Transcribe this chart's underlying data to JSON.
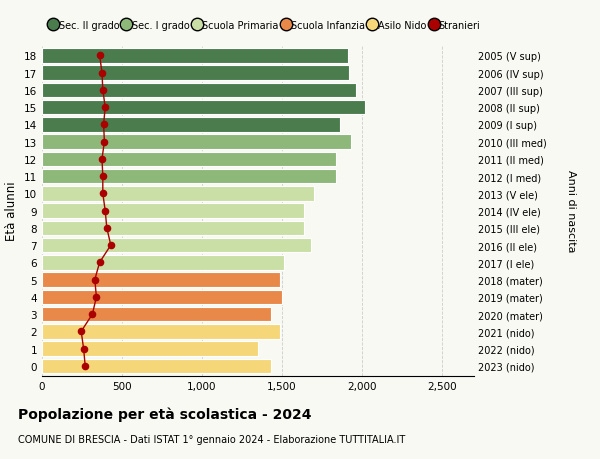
{
  "ages": [
    0,
    1,
    2,
    3,
    4,
    5,
    6,
    7,
    8,
    9,
    10,
    11,
    12,
    13,
    14,
    15,
    16,
    17,
    18
  ],
  "right_labels": [
    "2023 (nido)",
    "2022 (nido)",
    "2021 (nido)",
    "2020 (mater)",
    "2019 (mater)",
    "2018 (mater)",
    "2017 (I ele)",
    "2016 (II ele)",
    "2015 (III ele)",
    "2014 (IV ele)",
    "2013 (V ele)",
    "2012 (I med)",
    "2011 (II med)",
    "2010 (III med)",
    "2009 (I sup)",
    "2008 (II sup)",
    "2007 (III sup)",
    "2006 (IV sup)",
    "2005 (V sup)"
  ],
  "bar_values": [
    1430,
    1350,
    1490,
    1430,
    1500,
    1490,
    1510,
    1680,
    1640,
    1640,
    1700,
    1840,
    1840,
    1930,
    1860,
    2020,
    1960,
    1920,
    1910
  ],
  "bar_colors": [
    "#f5d77a",
    "#f5d77a",
    "#f5d77a",
    "#e8894a",
    "#e8894a",
    "#e8894a",
    "#c9dfa6",
    "#c9dfa6",
    "#c9dfa6",
    "#c9dfa6",
    "#c9dfa6",
    "#8db87a",
    "#8db87a",
    "#8db87a",
    "#4a7c4e",
    "#4a7c4e",
    "#4a7c4e",
    "#4a7c4e",
    "#4a7c4e"
  ],
  "stranieri_values": [
    270,
    260,
    245,
    315,
    340,
    330,
    360,
    430,
    405,
    395,
    380,
    380,
    375,
    390,
    385,
    395,
    380,
    375,
    360
  ],
  "title": "Popolazione per età scolastica - 2024",
  "subtitle": "COMUNE DI BRESCIA - Dati ISTAT 1° gennaio 2024 - Elaborazione TUTTITALIA.IT",
  "ylabel": "Età alunni",
  "right_ylabel": "Anni di nascita",
  "xlim": [
    0,
    2700
  ],
  "xticks": [
    0,
    500,
    1000,
    1500,
    2000,
    2500
  ],
  "xtick_labels": [
    "0",
    "500",
    "1,000",
    "1,500",
    "2,000",
    "2,500"
  ],
  "legend_labels": [
    "Sec. II grado",
    "Sec. I grado",
    "Scuola Primaria",
    "Scuola Infanzia",
    "Asilo Nido",
    "Stranieri"
  ],
  "legend_colors": [
    "#4a7c4e",
    "#8db87a",
    "#c9dfa6",
    "#e8894a",
    "#f5d77a",
    "#aa0000"
  ],
  "bg_color": "#f9f9f4",
  "bar_height": 0.85
}
